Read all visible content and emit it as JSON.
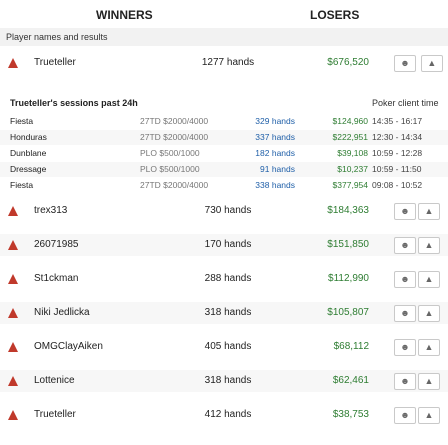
{
  "header": {
    "winners": "WINNERS",
    "losers": "LOSERS"
  },
  "subheader": "Player names and results",
  "top_player": {
    "name": "Trueteller",
    "hands": "1277 hands",
    "amount": "$676,520"
  },
  "sessions": {
    "title": "Trueteller's sessions past 24h",
    "time_label": "Poker client time",
    "rows": [
      {
        "name": "Fiesta",
        "game": "27TD $2000/4000",
        "hands": "329 hands",
        "amount": "$124,960",
        "time": "14:35 - 16:17"
      },
      {
        "name": "Honduras",
        "game": "27TD $2000/4000",
        "hands": "337 hands",
        "amount": "$222,951",
        "time": "12:30 - 14:34"
      },
      {
        "name": "Dunblane",
        "game": "PLO $500/1000",
        "hands": "182 hands",
        "amount": "$39,108",
        "time": "10:59 - 12:28"
      },
      {
        "name": "Dressage",
        "game": "PLO $500/1000",
        "hands": "91 hands",
        "amount": "$10,237",
        "time": "10:59 - 11:50"
      },
      {
        "name": "Fiesta",
        "game": "27TD $2000/4000",
        "hands": "338 hands",
        "amount": "$377,954",
        "time": "09:08 - 10:52"
      }
    ]
  },
  "winners": [
    {
      "name": "trex313",
      "hands": "730 hands",
      "amount": "$184,363"
    },
    {
      "name": "26071985",
      "hands": "170 hands",
      "amount": "$151,850"
    },
    {
      "name": "St1ckman",
      "hands": "288 hands",
      "amount": "$112,990"
    },
    {
      "name": "Niki Jedlicka",
      "hands": "318 hands",
      "amount": "$105,807"
    },
    {
      "name": "OMGClayAiken",
      "hands": "405 hands",
      "amount": "$68,112"
    },
    {
      "name": "Lottenice",
      "hands": "318 hands",
      "amount": "$62,461"
    },
    {
      "name": "Trueteller",
      "hands": "412 hands",
      "amount": "$38,753"
    }
  ]
}
